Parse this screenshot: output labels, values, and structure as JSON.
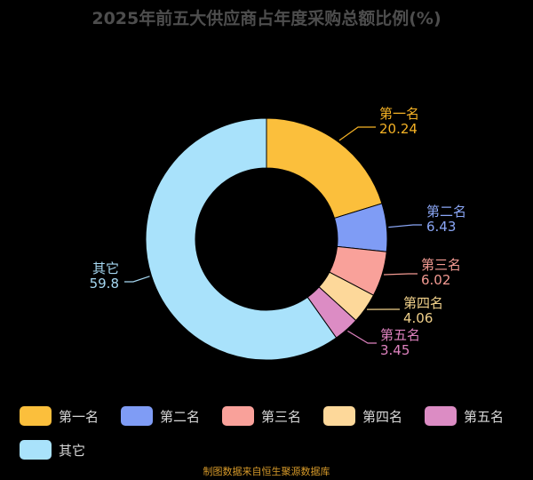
{
  "chart_data": {
    "type": "pie",
    "title": "2025年前五大供应商占年度采购总额比例(%)",
    "hole": "donut",
    "categories": [
      "第一名",
      "第二名",
      "第三名",
      "第四名",
      "第五名",
      "其它"
    ],
    "values": [
      20.24,
      6.43,
      6.02,
      4.06,
      3.45,
      59.8
    ],
    "value_labels": [
      "20.24",
      "6.43",
      "6.02",
      "4.06",
      "3.45",
      "59.8"
    ],
    "colors": [
      "#fbbf3c",
      "#7f9cf5",
      "#f9a19a",
      "#fdd89a",
      "#dc8cc4",
      "#a9e2fb"
    ],
    "label_colors": [
      "#f5b225",
      "#8aa6f5",
      "#f39a92",
      "#f0d08a",
      "#de82bf",
      "#a6d8f2"
    ],
    "legend_position": "bottom",
    "start": "top, clockwise"
  },
  "footer": {
    "source": "制图数据来自恒生聚源数据库"
  }
}
